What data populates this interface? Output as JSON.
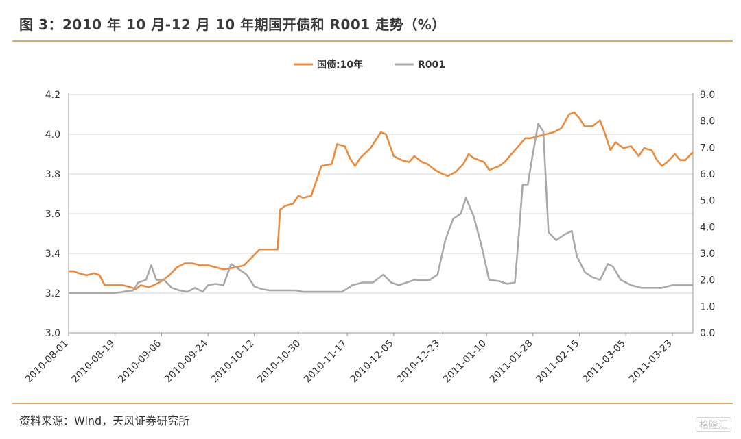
{
  "page": {
    "title": "图 3：2010 年 10 月-12 月 10 年期国开债和 R001 走势（%）",
    "source": "资料来源：Wind，天风证券研究所",
    "watermark": "格隆汇"
  },
  "chart_data": {
    "type": "line",
    "title": "图 3：2010 年 10 月-12 月 10 年期国开债和 R001 走势（%）",
    "x_ticks": [
      "2010-08-01",
      "2010-08-19",
      "2010-09-06",
      "2010-09-24",
      "2010-10-12",
      "2010-10-30",
      "2010-11-17",
      "2010-12-05",
      "2010-12-23",
      "2011-01-10",
      "2011-01-28",
      "2011-02-15",
      "2011-03-05",
      "2011-03-23"
    ],
    "x_range": [
      "2010-08-01",
      "2011-03-31"
    ],
    "y_left": {
      "range": [
        3.0,
        4.2
      ],
      "ticks": [
        "3.0",
        "3.2",
        "3.4",
        "3.6",
        "3.8",
        "4.0",
        "4.2"
      ]
    },
    "y_right": {
      "range": [
        0.0,
        9.0
      ],
      "ticks": [
        "0.0",
        "1.0",
        "2.0",
        "3.0",
        "4.0",
        "5.0",
        "6.0",
        "7.0",
        "8.0",
        "9.0"
      ]
    },
    "grid": "horizontal",
    "legend_position": "top-center",
    "colors": {
      "bond": "#ec8a3c",
      "repo": "#a9a9a9",
      "grid": "#d9d9d9",
      "rule": "#e8a66a"
    },
    "series": [
      {
        "name": "国债:10年",
        "axis": "left",
        "points": [
          [
            "2010-08-01",
            3.31
          ],
          [
            "2010-08-03",
            3.31
          ],
          [
            "2010-08-05",
            3.3
          ],
          [
            "2010-08-08",
            3.29
          ],
          [
            "2010-08-11",
            3.3
          ],
          [
            "2010-08-13",
            3.29
          ],
          [
            "2010-08-15",
            3.24
          ],
          [
            "2010-08-17",
            3.24
          ],
          [
            "2010-08-19",
            3.24
          ],
          [
            "2010-08-22",
            3.24
          ],
          [
            "2010-08-25",
            3.23
          ],
          [
            "2010-08-27",
            3.22
          ],
          [
            "2010-08-29",
            3.24
          ],
          [
            "2010-09-01",
            3.23
          ],
          [
            "2010-09-03",
            3.24
          ],
          [
            "2010-09-06",
            3.26
          ],
          [
            "2010-09-09",
            3.29
          ],
          [
            "2010-09-12",
            3.33
          ],
          [
            "2010-09-15",
            3.35
          ],
          [
            "2010-09-18",
            3.35
          ],
          [
            "2010-09-21",
            3.34
          ],
          [
            "2010-09-24",
            3.34
          ],
          [
            "2010-09-27",
            3.33
          ],
          [
            "2010-09-30",
            3.32
          ],
          [
            "2010-10-05",
            3.33
          ],
          [
            "2010-10-08",
            3.34
          ],
          [
            "2010-10-11",
            3.38
          ],
          [
            "2010-10-14",
            3.42
          ],
          [
            "2010-10-17",
            3.42
          ],
          [
            "2010-10-21",
            3.42
          ],
          [
            "2010-10-22",
            3.62
          ],
          [
            "2010-10-24",
            3.64
          ],
          [
            "2010-10-27",
            3.65
          ],
          [
            "2010-10-29",
            3.69
          ],
          [
            "2010-10-31",
            3.68
          ],
          [
            "2010-11-03",
            3.69
          ],
          [
            "2010-11-07",
            3.84
          ],
          [
            "2010-11-11",
            3.85
          ],
          [
            "2010-11-13",
            3.95
          ],
          [
            "2010-11-16",
            3.94
          ],
          [
            "2010-11-18",
            3.88
          ],
          [
            "2010-11-20",
            3.84
          ],
          [
            "2010-11-22",
            3.88
          ],
          [
            "2010-11-26",
            3.93
          ],
          [
            "2010-11-28",
            3.97
          ],
          [
            "2010-11-30",
            4.01
          ],
          [
            "2010-12-02",
            4.0
          ],
          [
            "2010-12-05",
            3.89
          ],
          [
            "2010-12-08",
            3.87
          ],
          [
            "2010-12-11",
            3.86
          ],
          [
            "2010-12-13",
            3.89
          ],
          [
            "2010-12-16",
            3.86
          ],
          [
            "2010-12-18",
            3.85
          ],
          [
            "2010-12-21",
            3.82
          ],
          [
            "2010-12-24",
            3.8
          ],
          [
            "2010-12-26",
            3.79
          ],
          [
            "2010-12-29",
            3.81
          ],
          [
            "2011-01-01",
            3.85
          ],
          [
            "2011-01-03",
            3.9
          ],
          [
            "2011-01-05",
            3.88
          ],
          [
            "2011-01-07",
            3.87
          ],
          [
            "2011-01-09",
            3.86
          ],
          [
            "2011-01-11",
            3.82
          ],
          [
            "2011-01-13",
            3.83
          ],
          [
            "2011-01-15",
            3.84
          ],
          [
            "2011-01-17",
            3.86
          ],
          [
            "2011-01-19",
            3.89
          ],
          [
            "2011-01-21",
            3.92
          ],
          [
            "2011-01-23",
            3.95
          ],
          [
            "2011-01-25",
            3.98
          ],
          [
            "2011-01-27",
            3.98
          ],
          [
            "2011-01-30",
            3.99
          ],
          [
            "2011-02-02",
            4.0
          ],
          [
            "2011-02-05",
            4.01
          ],
          [
            "2011-02-08",
            4.03
          ],
          [
            "2011-02-11",
            4.1
          ],
          [
            "2011-02-13",
            4.11
          ],
          [
            "2011-02-15",
            4.08
          ],
          [
            "2011-02-17",
            4.04
          ],
          [
            "2011-02-20",
            4.04
          ],
          [
            "2011-02-23",
            4.07
          ],
          [
            "2011-02-25",
            4.0
          ],
          [
            "2011-02-27",
            3.92
          ],
          [
            "2011-03-01",
            3.96
          ],
          [
            "2011-03-04",
            3.93
          ],
          [
            "2011-03-07",
            3.94
          ],
          [
            "2011-03-10",
            3.89
          ],
          [
            "2011-03-12",
            3.93
          ],
          [
            "2011-03-15",
            3.92
          ],
          [
            "2011-03-17",
            3.87
          ],
          [
            "2011-03-19",
            3.84
          ],
          [
            "2011-03-21",
            3.86
          ],
          [
            "2011-03-24",
            3.9
          ],
          [
            "2011-03-26",
            3.87
          ],
          [
            "2011-03-28",
            3.87
          ],
          [
            "2011-03-31",
            3.91
          ]
        ]
      },
      {
        "name": "R001",
        "axis": "right",
        "points": [
          [
            "2010-08-01",
            1.5
          ],
          [
            "2010-08-06",
            1.5
          ],
          [
            "2010-08-10",
            1.5
          ],
          [
            "2010-08-15",
            1.5
          ],
          [
            "2010-08-19",
            1.5
          ],
          [
            "2010-08-22",
            1.55
          ],
          [
            "2010-08-26",
            1.6
          ],
          [
            "2010-08-28",
            1.9
          ],
          [
            "2010-08-31",
            2.0
          ],
          [
            "2010-09-02",
            2.55
          ],
          [
            "2010-09-04",
            2.0
          ],
          [
            "2010-09-07",
            2.0
          ],
          [
            "2010-09-10",
            1.7
          ],
          [
            "2010-09-13",
            1.6
          ],
          [
            "2010-09-16",
            1.55
          ],
          [
            "2010-09-19",
            1.7
          ],
          [
            "2010-09-22",
            1.55
          ],
          [
            "2010-09-24",
            1.8
          ],
          [
            "2010-09-27",
            1.85
          ],
          [
            "2010-09-30",
            1.8
          ],
          [
            "2010-10-03",
            2.6
          ],
          [
            "2010-10-06",
            2.4
          ],
          [
            "2010-10-09",
            2.2
          ],
          [
            "2010-10-12",
            1.75
          ],
          [
            "2010-10-15",
            1.65
          ],
          [
            "2010-10-18",
            1.6
          ],
          [
            "2010-10-22",
            1.6
          ],
          [
            "2010-10-25",
            1.6
          ],
          [
            "2010-10-28",
            1.6
          ],
          [
            "2010-10-31",
            1.55
          ],
          [
            "2010-11-03",
            1.55
          ],
          [
            "2010-11-07",
            1.55
          ],
          [
            "2010-11-11",
            1.55
          ],
          [
            "2010-11-15",
            1.55
          ],
          [
            "2010-11-19",
            1.8
          ],
          [
            "2010-11-23",
            1.9
          ],
          [
            "2010-11-27",
            1.9
          ],
          [
            "2010-12-01",
            2.2
          ],
          [
            "2010-12-04",
            1.9
          ],
          [
            "2010-12-07",
            1.8
          ],
          [
            "2010-12-10",
            1.9
          ],
          [
            "2010-12-13",
            2.0
          ],
          [
            "2010-12-16",
            2.0
          ],
          [
            "2010-12-19",
            2.0
          ],
          [
            "2010-12-22",
            2.2
          ],
          [
            "2010-12-25",
            3.5
          ],
          [
            "2010-12-28",
            4.3
          ],
          [
            "2010-12-31",
            4.5
          ],
          [
            "2011-01-02",
            5.1
          ],
          [
            "2011-01-05",
            4.4
          ],
          [
            "2011-01-08",
            3.3
          ],
          [
            "2011-01-11",
            2.0
          ],
          [
            "2011-01-15",
            1.95
          ],
          [
            "2011-01-18",
            1.85
          ],
          [
            "2011-01-21",
            1.9
          ],
          [
            "2011-01-22",
            3.1
          ],
          [
            "2011-01-24",
            5.6
          ],
          [
            "2011-01-26",
            5.6
          ],
          [
            "2011-01-28",
            6.8
          ],
          [
            "2011-01-30",
            7.9
          ],
          [
            "2011-02-01",
            7.6
          ],
          [
            "2011-02-03",
            3.8
          ],
          [
            "2011-02-06",
            3.5
          ],
          [
            "2011-02-09",
            3.7
          ],
          [
            "2011-02-12",
            3.85
          ],
          [
            "2011-02-14",
            2.9
          ],
          [
            "2011-02-17",
            2.3
          ],
          [
            "2011-02-20",
            2.1
          ],
          [
            "2011-02-23",
            2.0
          ],
          [
            "2011-02-26",
            2.6
          ],
          [
            "2011-02-28",
            2.5
          ],
          [
            "2011-03-03",
            2.0
          ],
          [
            "2011-03-07",
            1.8
          ],
          [
            "2011-03-11",
            1.7
          ],
          [
            "2011-03-15",
            1.7
          ],
          [
            "2011-03-19",
            1.7
          ],
          [
            "2011-03-23",
            1.8
          ],
          [
            "2011-03-27",
            1.8
          ],
          [
            "2011-03-31",
            1.8
          ]
        ]
      }
    ]
  }
}
